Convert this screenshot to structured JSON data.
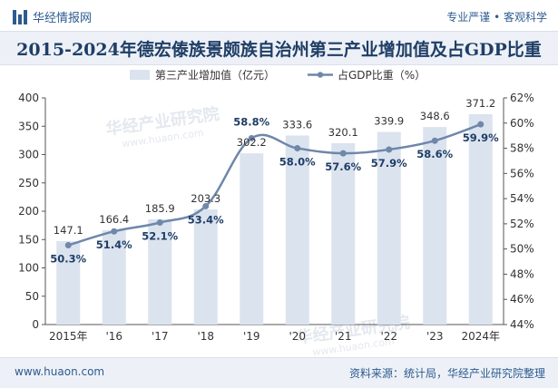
{
  "header": {
    "brand": "华经情报网",
    "slogan": "专业严谨 • 客观科学"
  },
  "title": "2015-2024年德宏傣族景颇族自治州第三产业增加值及占GDP比重",
  "footer": {
    "url": "www.huaon.com",
    "source": "资料来源：统计局，华经产业研究院整理"
  },
  "watermark": {
    "text": "华经产业研究院",
    "url": "www.huaon.com"
  },
  "colors": {
    "bar": "#dbe3ef",
    "line": "#6e87aa",
    "brand": "#2d5b8f",
    "title": "#1f3e66"
  },
  "chart_data": {
    "type": "bar+line",
    "categories": [
      "2015年",
      "'16",
      "'17",
      "'18",
      "'19",
      "'20",
      "'21",
      "'22",
      "'23",
      "2024年"
    ],
    "series": [
      {
        "name": "第三产业增加值（亿元）",
        "type": "bar",
        "axis": "left",
        "values": [
          147.1,
          166.4,
          185.9,
          203.3,
          302.2,
          333.6,
          320.1,
          339.9,
          348.6,
          371.2
        ],
        "labels": [
          "147.1",
          "166.4",
          "185.9",
          "203.3",
          "302.2",
          "333.6",
          "320.1",
          "339.9",
          "348.6",
          "371.2"
        ]
      },
      {
        "name": "占GDP比重（%）",
        "type": "line",
        "axis": "right",
        "values": [
          50.3,
          51.4,
          52.1,
          53.4,
          58.8,
          58.0,
          57.6,
          57.9,
          58.6,
          59.9
        ],
        "labels": [
          "50.3%",
          "51.4%",
          "52.1%",
          "53.4%",
          "58.8%",
          "58.0%",
          "57.6%",
          "57.9%",
          "58.6%",
          "59.9%"
        ]
      }
    ],
    "y_left": {
      "min": 0,
      "max": 400,
      "ticks": [
        "0",
        "50",
        "100",
        "150",
        "200",
        "250",
        "300",
        "350",
        "400"
      ]
    },
    "y_right": {
      "min": 44,
      "max": 62,
      "ticks": [
        "44%",
        "46%",
        "48%",
        "50%",
        "52%",
        "54%",
        "56%",
        "58%",
        "60%",
        "62%"
      ]
    },
    "legend_position": "top",
    "grid": false
  }
}
